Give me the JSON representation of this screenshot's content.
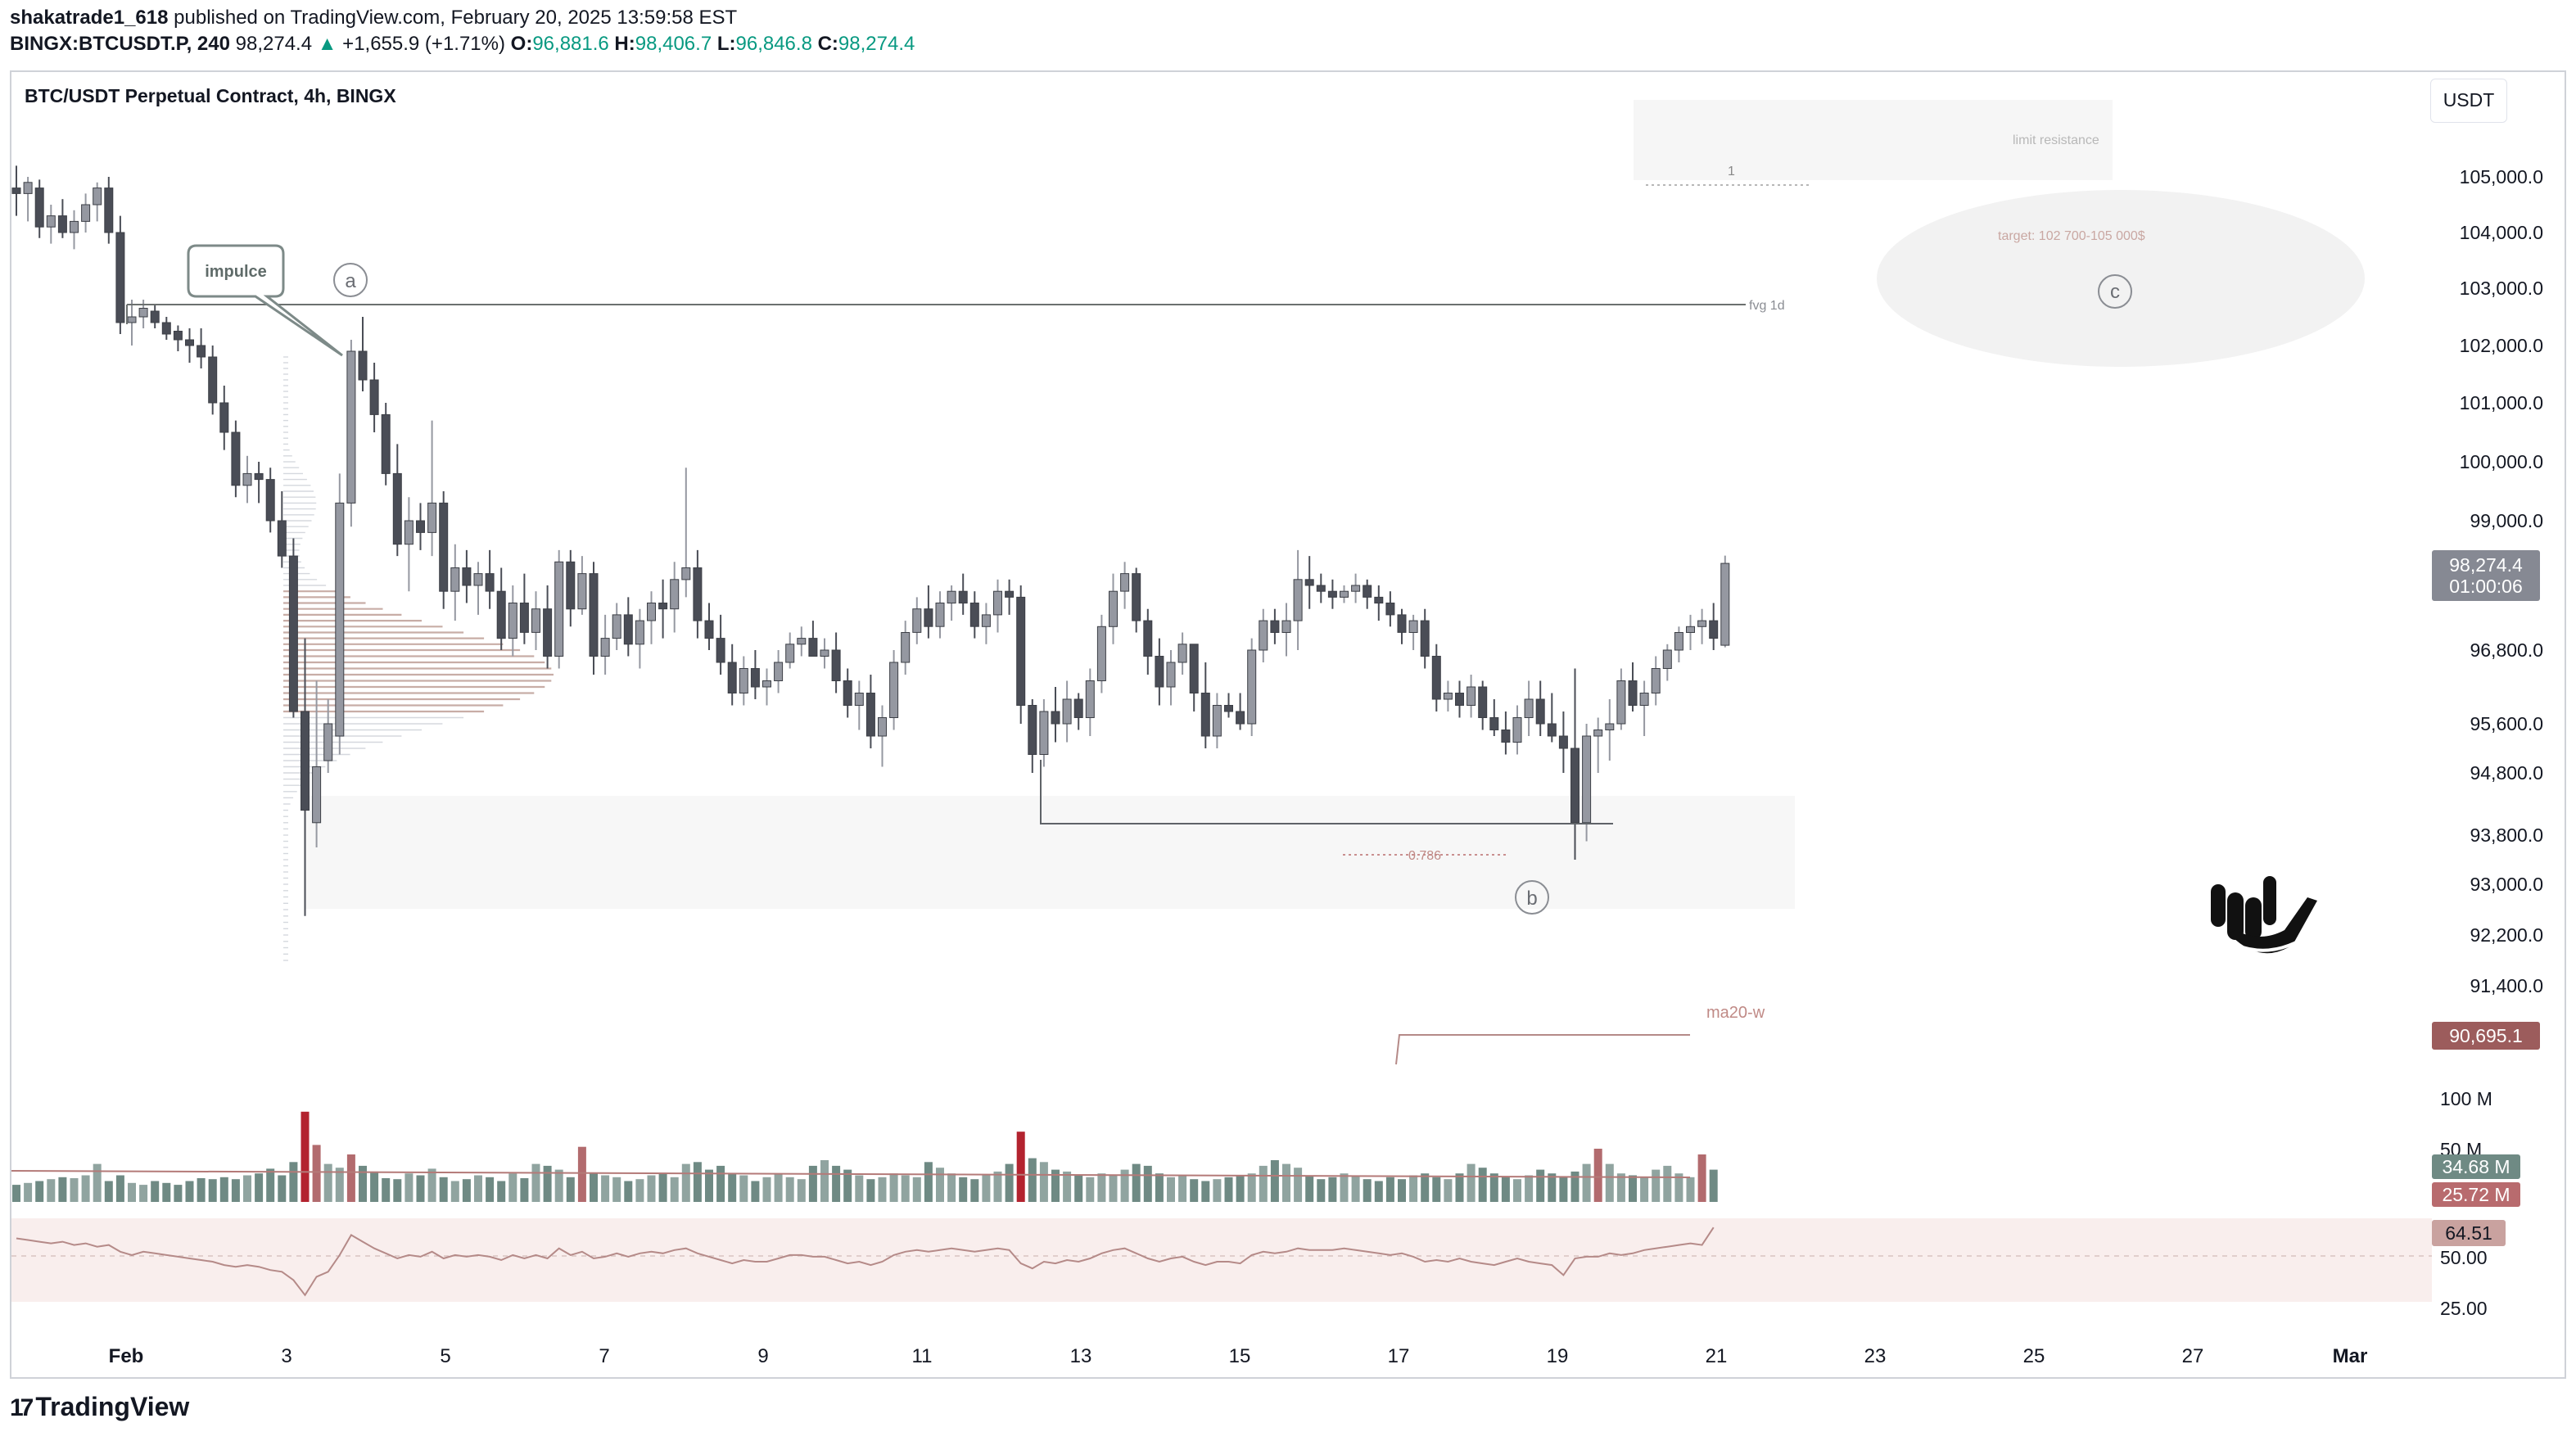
{
  "header": {
    "user": "shakatrade1_618",
    "published": "published on TradingView.com, February 20, 2025 13:59:58 EST",
    "symbol": "BINGX:BTCUSDT.P, 240",
    "last": "98,274.4",
    "arrow": "▲",
    "change": "+1,655.9 (+1.71%)",
    "o_label": "O:",
    "o": "96,881.6",
    "h_label": "H:",
    "h": "98,406.7",
    "l_label": "L:",
    "l": "96,846.8",
    "c_label": "C:",
    "c": "98,274.4"
  },
  "pane_title": "BTC/USDT Perpetual Contract, 4h, BINGX",
  "currency_button": "USDT",
  "brand": "TradingView",
  "brand_mark": "17",
  "annotations": {
    "impulse": "impulce",
    "wave_a": "a",
    "wave_b": "b",
    "wave_c": "c",
    "fvg": "fvg 1d",
    "limit": "limit resistance",
    "limit_num": "1",
    "target": "target: 102 700-105 000$",
    "fib": "0.786",
    "ma": "ma20-w"
  },
  "price_badges": {
    "last": "98,274.4",
    "countdown": "01:00:06",
    "ma": "90,695.1",
    "vol1": "34.68 M",
    "vol2": "25.72 M",
    "rsi": "64.51"
  },
  "colors": {
    "bull": "#9598a1",
    "bear": "#4a4d56",
    "vol_up": "#90a4a0",
    "vol_down": "#6f8a84",
    "vol_hi": "#b3232f",
    "vol_mid": "#b26b6e",
    "rsi_line": "#b58a88",
    "profile": "#c8ada6",
    "badge_dark": "#868993",
    "badge_ma": "#9c5c5c",
    "badge_vol": "#6f8a84",
    "badge_vol2": "#b86b6e",
    "badge_rsi": "#c9a29f"
  },
  "chart_data": {
    "type": "candlestick",
    "timeframe": "4h",
    "y_axis_labels": [
      "105,000.0",
      "104,000.0",
      "103,000.0",
      "102,000.0",
      "101,000.0",
      "100,000.0",
      "99,000.0",
      "96,800.0",
      "95,600.0",
      "94,800.0",
      "93,800.0",
      "93,000.0",
      "92,200.0",
      "91,400.0"
    ],
    "x_axis_labels": [
      "Feb",
      "3",
      "5",
      "7",
      "9",
      "11",
      "13",
      "15",
      "17",
      "19",
      "21",
      "23",
      "25",
      "27",
      "Mar"
    ],
    "volume_axis_labels": [
      "100 M",
      "50 M"
    ],
    "rsi_axis_labels": [
      "50.00",
      "25.00"
    ],
    "levels": {
      "fvg_1d": 102700,
      "range_low": 94000,
      "fib_0786": 93450
    },
    "target_zone": [
      102700,
      105000
    ],
    "ohlc": [
      [
        104800,
        105200,
        104300,
        104700
      ],
      [
        104700,
        105000,
        104200,
        104900
      ],
      [
        104800,
        104950,
        103900,
        104100
      ],
      [
        104100,
        104500,
        103800,
        104300
      ],
      [
        104300,
        104600,
        103900,
        104000
      ],
      [
        104000,
        104400,
        103700,
        104200
      ],
      [
        104200,
        104700,
        104000,
        104500
      ],
      [
        104500,
        104900,
        104200,
        104800
      ],
      [
        104800,
        105000,
        103800,
        104000
      ],
      [
        104000,
        104300,
        102200,
        102400
      ],
      [
        102400,
        102800,
        102000,
        102500
      ],
      [
        102500,
        102800,
        102300,
        102650
      ],
      [
        102600,
        102700,
        102300,
        102400
      ],
      [
        102400,
        102500,
        102100,
        102200
      ],
      [
        102250,
        102350,
        101900,
        102100
      ],
      [
        102100,
        102300,
        101700,
        102000
      ],
      [
        102000,
        102300,
        101600,
        101800
      ],
      [
        101800,
        102000,
        100800,
        101000
      ],
      [
        101000,
        101300,
        100200,
        100500
      ],
      [
        100500,
        100700,
        99400,
        99600
      ],
      [
        99600,
        100100,
        99300,
        99800
      ],
      [
        99800,
        100000,
        99300,
        99700
      ],
      [
        99700,
        99900,
        98800,
        99000
      ],
      [
        99000,
        99500,
        98200,
        98400
      ],
      [
        98400,
        98700,
        95700,
        95800
      ],
      [
        95800,
        97000,
        92500,
        94200
      ],
      [
        94000,
        96300,
        93600,
        94900
      ],
      [
        95000,
        96000,
        94800,
        95600
      ],
      [
        95400,
        99800,
        95100,
        99300
      ],
      [
        99300,
        102100,
        98900,
        101900
      ],
      [
        101900,
        102500,
        101200,
        101400
      ],
      [
        101400,
        101700,
        100500,
        100800
      ],
      [
        100800,
        101000,
        99600,
        99800
      ],
      [
        99800,
        100300,
        98400,
        98600
      ],
      [
        98600,
        99400,
        97800,
        99000
      ],
      [
        99000,
        99300,
        98500,
        98800
      ],
      [
        98800,
        100700,
        98400,
        99300
      ],
      [
        99300,
        99500,
        97500,
        97800
      ],
      [
        97800,
        98600,
        97300,
        98200
      ],
      [
        98200,
        98500,
        97600,
        97900
      ],
      [
        97900,
        98300,
        97400,
        98100
      ],
      [
        98100,
        98500,
        97500,
        97800
      ],
      [
        97800,
        98200,
        96800,
        97000
      ],
      [
        97000,
        97900,
        96700,
        97600
      ],
      [
        97600,
        98100,
        96900,
        97100
      ],
      [
        97100,
        97800,
        96800,
        97500
      ],
      [
        97500,
        97900,
        96500,
        96700
      ],
      [
        96700,
        98500,
        96500,
        98300
      ],
      [
        98300,
        98500,
        97200,
        97500
      ],
      [
        97500,
        98400,
        97400,
        98100
      ],
      [
        98100,
        98300,
        96400,
        96700
      ],
      [
        96700,
        97400,
        96400,
        97000
      ],
      [
        97000,
        97600,
        96800,
        97400
      ],
      [
        97400,
        97700,
        96700,
        96900
      ],
      [
        96900,
        97500,
        96500,
        97300
      ],
      [
        97300,
        97800,
        96900,
        97600
      ],
      [
        97600,
        98000,
        97000,
        97500
      ],
      [
        97500,
        98300,
        97100,
        98000
      ],
      [
        98000,
        99900,
        97700,
        98200
      ],
      [
        98200,
        98500,
        97000,
        97300
      ],
      [
        97300,
        97600,
        96800,
        97000
      ],
      [
        97000,
        97400,
        96400,
        96600
      ],
      [
        96600,
        96900,
        95900,
        96100
      ],
      [
        96100,
        96700,
        95900,
        96500
      ],
      [
        96500,
        96800,
        96000,
        96200
      ],
      [
        96200,
        96500,
        95900,
        96300
      ],
      [
        96300,
        96800,
        96100,
        96600
      ],
      [
        96600,
        97100,
        96500,
        96900
      ],
      [
        96900,
        97200,
        96700,
        97000
      ],
      [
        97000,
        97300,
        96800,
        96700
      ],
      [
        96700,
        97000,
        96500,
        96800
      ],
      [
        96800,
        97100,
        96100,
        96300
      ],
      [
        96300,
        96500,
        95700,
        95900
      ],
      [
        95900,
        96300,
        95500,
        96100
      ],
      [
        96100,
        96400,
        95200,
        95400
      ],
      [
        95400,
        95900,
        94900,
        95700
      ],
      [
        95700,
        96800,
        95500,
        96600
      ],
      [
        96600,
        97300,
        96400,
        97100
      ],
      [
        97100,
        97700,
        96900,
        97500
      ],
      [
        97500,
        97900,
        97000,
        97200
      ],
      [
        97200,
        97800,
        97000,
        97600
      ],
      [
        97600,
        97900,
        97300,
        97800
      ],
      [
        97800,
        98100,
        97400,
        97600
      ],
      [
        97600,
        97800,
        97000,
        97200
      ],
      [
        97200,
        97600,
        96900,
        97400
      ],
      [
        97400,
        98000,
        97100,
        97800
      ],
      [
        97800,
        98000,
        97400,
        97700
      ],
      [
        97700,
        97900,
        95600,
        95900
      ],
      [
        95900,
        96000,
        94800,
        95100
      ],
      [
        95100,
        96000,
        94900,
        95800
      ],
      [
        95800,
        96200,
        95300,
        95600
      ],
      [
        95600,
        96300,
        95300,
        96000
      ],
      [
        96000,
        96100,
        95500,
        95700
      ],
      [
        95700,
        96500,
        95400,
        96300
      ],
      [
        96300,
        97400,
        96100,
        97200
      ],
      [
        97200,
        98100,
        96900,
        97800
      ],
      [
        97800,
        98300,
        97500,
        98100
      ],
      [
        98100,
        98200,
        97100,
        97300
      ],
      [
        97300,
        97500,
        96400,
        96700
      ],
      [
        96700,
        97000,
        95900,
        96200
      ],
      [
        96200,
        96800,
        95900,
        96600
      ],
      [
        96600,
        97100,
        96400,
        96900
      ],
      [
        96900,
        96900,
        95800,
        96100
      ],
      [
        96100,
        96600,
        95200,
        95400
      ],
      [
        95400,
        96100,
        95200,
        95900
      ],
      [
        95900,
        96100,
        95700,
        95800
      ],
      [
        95800,
        96100,
        95500,
        95600
      ],
      [
        95600,
        97000,
        95400,
        96800
      ],
      [
        96800,
        97500,
        96600,
        97300
      ],
      [
        97300,
        97500,
        96900,
        97100
      ],
      [
        97100,
        97600,
        96700,
        97300
      ],
      [
        97300,
        98500,
        96800,
        98000
      ],
      [
        98000,
        98400,
        97500,
        97900
      ],
      [
        97900,
        98100,
        97600,
        97800
      ],
      [
        97800,
        98000,
        97500,
        97700
      ],
      [
        97700,
        97900,
        97600,
        97800
      ],
      [
        97800,
        98100,
        97600,
        97900
      ],
      [
        97900,
        98000,
        97500,
        97700
      ],
      [
        97700,
        97900,
        97300,
        97600
      ],
      [
        97600,
        97800,
        97200,
        97400
      ],
      [
        97400,
        97500,
        96900,
        97100
      ],
      [
        97100,
        97400,
        96800,
        97300
      ],
      [
        97300,
        97500,
        96500,
        96700
      ],
      [
        96700,
        96900,
        95800,
        96000
      ],
      [
        96000,
        96300,
        95800,
        96100
      ],
      [
        96100,
        96300,
        95700,
        95900
      ],
      [
        95900,
        96400,
        95700,
        96200
      ],
      [
        96200,
        96300,
        95500,
        95700
      ],
      [
        95700,
        96000,
        95400,
        95500
      ],
      [
        95500,
        95800,
        95100,
        95300
      ],
      [
        95300,
        95900,
        95100,
        95700
      ],
      [
        95700,
        96300,
        95400,
        96000
      ],
      [
        96000,
        96300,
        95400,
        95600
      ],
      [
        95600,
        96100,
        95300,
        95400
      ],
      [
        95400,
        95800,
        94800,
        95200
      ],
      [
        95200,
        96500,
        93400,
        94000
      ],
      [
        94000,
        95600,
        93700,
        95400
      ],
      [
        95400,
        95700,
        94800,
        95500
      ],
      [
        95500,
        96000,
        95000,
        95600
      ],
      [
        95600,
        96500,
        95500,
        96300
      ],
      [
        96300,
        96600,
        95800,
        95900
      ],
      [
        95900,
        96300,
        95400,
        96100
      ],
      [
        96100,
        96700,
        95900,
        96500
      ],
      [
        96500,
        96900,
        96300,
        96800
      ],
      [
        96800,
        97200,
        96600,
        97100
      ],
      [
        97100,
        97400,
        96800,
        97200
      ],
      [
        97200,
        97500,
        96900,
        97300
      ],
      [
        97300,
        97600,
        96800,
        97000
      ],
      [
        96881.6,
        98406.7,
        96846.8,
        98274.4
      ]
    ],
    "volume_M": [
      18,
      20,
      22,
      24,
      26,
      25,
      28,
      40,
      22,
      28,
      20,
      18,
      22,
      20,
      18,
      22,
      25,
      24,
      26,
      24,
      28,
      30,
      35,
      28,
      42,
      95,
      60,
      40,
      36,
      50,
      38,
      32,
      25,
      24,
      30,
      28,
      35,
      26,
      22,
      24,
      28,
      26,
      22,
      30,
      25,
      40,
      38,
      34,
      26,
      58,
      30,
      28,
      26,
      22,
      24,
      28,
      30,
      26,
      40,
      42,
      34,
      38,
      30,
      28,
      22,
      26,
      30,
      26,
      24,
      38,
      44,
      38,
      34,
      28,
      24,
      26,
      30,
      28,
      26,
      42,
      36,
      30,
      26,
      24,
      28,
      32,
      40,
      74,
      46,
      42,
      34,
      32,
      28,
      26,
      30,
      28,
      34,
      40,
      38,
      30,
      26,
      28,
      24,
      22,
      24,
      26,
      28,
      30,
      38,
      44,
      40,
      36,
      28,
      24,
      26,
      30,
      28,
      24,
      22,
      26,
      24,
      28,
      30,
      26,
      24,
      30,
      40,
      36,
      30,
      26,
      24,
      28,
      34,
      30,
      26,
      32,
      40,
      56,
      40,
      30,
      28,
      26,
      34,
      38,
      30,
      26,
      50,
      34
    ],
    "rsi": [
      58,
      57,
      56,
      55,
      56,
      54,
      55,
      53,
      54,
      50,
      48,
      50,
      49,
      48,
      47,
      46,
      45,
      44,
      42,
      41,
      42,
      41,
      39,
      38,
      33,
      24,
      35,
      38,
      48,
      60,
      56,
      52,
      49,
      46,
      48,
      47,
      50,
      46,
      48,
      47,
      48,
      47,
      45,
      48,
      46,
      48,
      46,
      52,
      48,
      50,
      46,
      47,
      49,
      47,
      49,
      50,
      49,
      51,
      52,
      49,
      47,
      45,
      43,
      45,
      44,
      44,
      46,
      48,
      48,
      47,
      47,
      45,
      43,
      44,
      42,
      44,
      48,
      50,
      51,
      50,
      51,
      52,
      51,
      50,
      51,
      52,
      51,
      43,
      40,
      44,
      43,
      45,
      44,
      46,
      49,
      51,
      52,
      49,
      46,
      44,
      46,
      47,
      44,
      42,
      44,
      44,
      43,
      48,
      50,
      49,
      50,
      52,
      51,
      51,
      51,
      52,
      51,
      50,
      49,
      48,
      49,
      47,
      44,
      45,
      44,
      46,
      44,
      43,
      42,
      44,
      46,
      44,
      43,
      42,
      36,
      46,
      47,
      47,
      49,
      48,
      49,
      51,
      52,
      53,
      54,
      55,
      54,
      64.51
    ],
    "volume_ma_M": 22,
    "rsi_band": [
      30,
      70
    ]
  }
}
